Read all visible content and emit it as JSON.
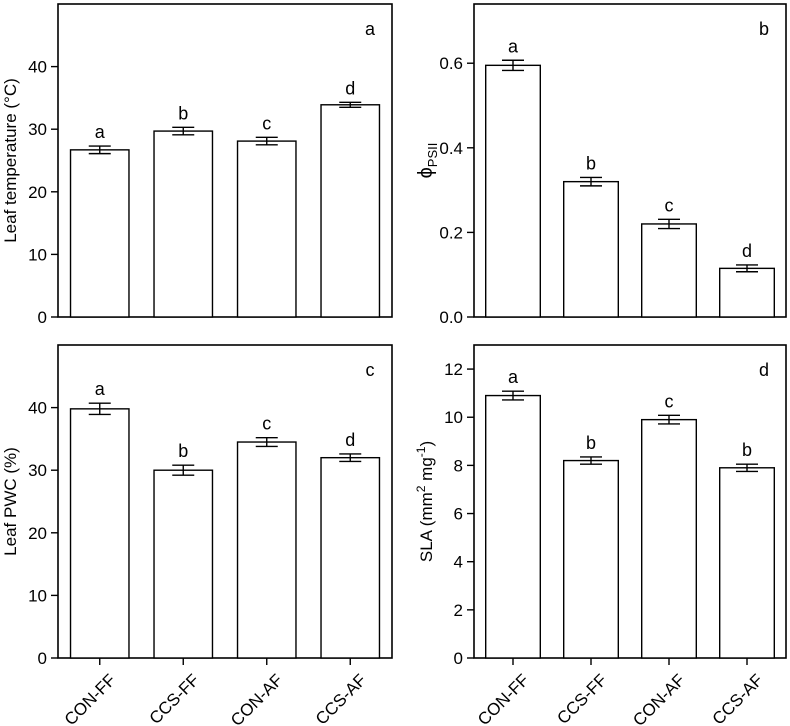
{
  "chart_data": [
    {
      "id": "a",
      "type": "bar",
      "panel_letter": "a",
      "categories": [
        "CON-FF",
        "CCS-FF",
        "CON-AF",
        "CCS-AF"
      ],
      "values": [
        26.7,
        29.7,
        28.1,
        33.9
      ],
      "errors": [
        0.6,
        0.6,
        0.6,
        0.4
      ],
      "sig_letters": [
        "a",
        "b",
        "c",
        "d"
      ],
      "ylabel": "Leaf temperature (°C)",
      "ylim": [
        0,
        50
      ],
      "yticks": [
        0,
        10,
        20,
        30,
        40
      ],
      "ytick_labels": [
        "0",
        "10",
        "20",
        "30",
        "40"
      ],
      "show_xticklabels": false
    },
    {
      "id": "b",
      "type": "bar",
      "panel_letter": "b",
      "categories": [
        "CON-FF",
        "CCS-FF",
        "CON-AF",
        "CCS-AF"
      ],
      "values": [
        0.595,
        0.32,
        0.22,
        0.115
      ],
      "errors": [
        0.012,
        0.01,
        0.011,
        0.008
      ],
      "sig_letters": [
        "a",
        "b",
        "c",
        "d"
      ],
      "ylabel_symbol": "ϕ",
      "ylabel_subscript": "PSII",
      "ylim": [
        0,
        0.74
      ],
      "yticks": [
        0,
        0.2,
        0.4,
        0.6
      ],
      "ytick_labels": [
        "0.0",
        "0.2",
        "0.4",
        "0.6"
      ],
      "show_xticklabels": false
    },
    {
      "id": "c",
      "type": "bar",
      "panel_letter": "c",
      "categories": [
        "CON-FF",
        "CCS-FF",
        "CON-AF",
        "CCS-AF"
      ],
      "values": [
        39.8,
        30.0,
        34.5,
        32.0
      ],
      "errors": [
        0.9,
        0.8,
        0.7,
        0.6
      ],
      "sig_letters": [
        "a",
        "b",
        "c",
        "d"
      ],
      "ylabel": "Leaf PWC (%)",
      "ylim": [
        0,
        50
      ],
      "yticks": [
        0,
        10,
        20,
        30,
        40
      ],
      "ytick_labels": [
        "0",
        "10",
        "20",
        "30",
        "40"
      ],
      "show_xticklabels": true
    },
    {
      "id": "d",
      "type": "bar",
      "panel_letter": "d",
      "categories": [
        "CON-FF",
        "CCS-FF",
        "CON-AF",
        "CCS-AF"
      ],
      "values": [
        10.9,
        8.2,
        9.9,
        7.9
      ],
      "errors": [
        0.18,
        0.15,
        0.18,
        0.15
      ],
      "sig_letters": [
        "a",
        "b",
        "c",
        "b"
      ],
      "ylabel_parts": [
        "SLA (mm",
        "2",
        " mg",
        "-1",
        ")"
      ],
      "ylim": [
        0,
        13
      ],
      "yticks": [
        0,
        2,
        4,
        6,
        8,
        10,
        12
      ],
      "ytick_labels": [
        "0",
        "2",
        "4",
        "6",
        "8",
        "10",
        "12"
      ],
      "show_xticklabels": true
    }
  ]
}
